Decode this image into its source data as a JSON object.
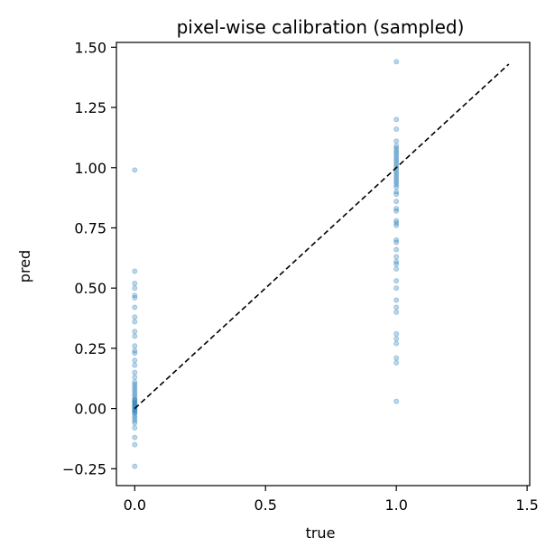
{
  "chart_data": {
    "type": "scatter",
    "title": "pixel-wise calibration (sampled)",
    "xlabel": "true",
    "ylabel": "pred",
    "xlim": [
      -0.07,
      1.51
    ],
    "ylim": [
      -0.32,
      1.52
    ],
    "xticks": [
      0.0,
      0.5,
      1.0,
      1.5
    ],
    "xtick_labels": [
      "0.0",
      "0.5",
      "1.0",
      "1.5"
    ],
    "yticks": [
      -0.25,
      0.0,
      0.25,
      0.5,
      0.75,
      1.0,
      1.25,
      1.5
    ],
    "ytick_labels": [
      "−0.25",
      "0.00",
      "0.25",
      "0.50",
      "0.75",
      "1.00",
      "1.25",
      "1.50"
    ],
    "grid": false,
    "marker_color": "#1f77b4",
    "marker_alpha": 0.3,
    "reference_line": {
      "style": "dashed",
      "color": "#000000",
      "from": [
        0.0,
        0.0
      ],
      "to": [
        1.43,
        1.43
      ]
    },
    "points": [
      {
        "x": 0,
        "y": 0.99
      },
      {
        "x": 0,
        "y": 0.57
      },
      {
        "x": 0,
        "y": 0.52
      },
      {
        "x": 0,
        "y": 0.5
      },
      {
        "x": 0,
        "y": 0.47
      },
      {
        "x": 0,
        "y": 0.46
      },
      {
        "x": 0,
        "y": 0.42
      },
      {
        "x": 0,
        "y": 0.38
      },
      {
        "x": 0,
        "y": 0.36
      },
      {
        "x": 0,
        "y": 0.32
      },
      {
        "x": 0,
        "y": 0.3
      },
      {
        "x": 0,
        "y": 0.26
      },
      {
        "x": 0,
        "y": 0.24
      },
      {
        "x": 0,
        "y": 0.23
      },
      {
        "x": 0,
        "y": 0.2
      },
      {
        "x": 0,
        "y": 0.18
      },
      {
        "x": 0,
        "y": 0.15
      },
      {
        "x": 0,
        "y": 0.13
      },
      {
        "x": 0,
        "y": 0.11
      },
      {
        "x": 0,
        "y": 0.1
      },
      {
        "x": 0,
        "y": 0.09
      },
      {
        "x": 0,
        "y": 0.08
      },
      {
        "x": 0,
        "y": 0.07
      },
      {
        "x": 0,
        "y": 0.06
      },
      {
        "x": 0,
        "y": 0.05
      },
      {
        "x": 0,
        "y": 0.04
      },
      {
        "x": 0,
        "y": 0.035
      },
      {
        "x": 0,
        "y": 0.03
      },
      {
        "x": 0,
        "y": 0.025
      },
      {
        "x": 0,
        "y": 0.02
      },
      {
        "x": 0,
        "y": 0.015
      },
      {
        "x": 0,
        "y": 0.01
      },
      {
        "x": 0,
        "y": 0.005
      },
      {
        "x": 0,
        "y": 0.0
      },
      {
        "x": 0,
        "y": -0.005
      },
      {
        "x": 0,
        "y": -0.01
      },
      {
        "x": 0,
        "y": -0.015
      },
      {
        "x": 0,
        "y": -0.02
      },
      {
        "x": 0,
        "y": -0.03
      },
      {
        "x": 0,
        "y": -0.04
      },
      {
        "x": 0,
        "y": -0.05
      },
      {
        "x": 0,
        "y": -0.06
      },
      {
        "x": 0,
        "y": -0.08
      },
      {
        "x": 0,
        "y": -0.12
      },
      {
        "x": 0,
        "y": -0.15
      },
      {
        "x": 0,
        "y": -0.24
      },
      {
        "x": 1,
        "y": 1.44
      },
      {
        "x": 1,
        "y": 1.2
      },
      {
        "x": 1,
        "y": 1.16
      },
      {
        "x": 1,
        "y": 1.11
      },
      {
        "x": 1,
        "y": 1.09
      },
      {
        "x": 1,
        "y": 1.08
      },
      {
        "x": 1,
        "y": 1.07
      },
      {
        "x": 1,
        "y": 1.06
      },
      {
        "x": 1,
        "y": 1.05
      },
      {
        "x": 1,
        "y": 1.04
      },
      {
        "x": 1,
        "y": 1.03
      },
      {
        "x": 1,
        "y": 1.02
      },
      {
        "x": 1,
        "y": 1.01
      },
      {
        "x": 1,
        "y": 1.0
      },
      {
        "x": 1,
        "y": 0.99
      },
      {
        "x": 1,
        "y": 0.98
      },
      {
        "x": 1,
        "y": 0.97
      },
      {
        "x": 1,
        "y": 0.96
      },
      {
        "x": 1,
        "y": 0.95
      },
      {
        "x": 1,
        "y": 0.94
      },
      {
        "x": 1,
        "y": 0.93
      },
      {
        "x": 1,
        "y": 0.92
      },
      {
        "x": 1,
        "y": 0.9
      },
      {
        "x": 1,
        "y": 0.89
      },
      {
        "x": 1,
        "y": 0.86
      },
      {
        "x": 1,
        "y": 0.83
      },
      {
        "x": 1,
        "y": 0.82
      },
      {
        "x": 1,
        "y": 0.78
      },
      {
        "x": 1,
        "y": 0.77
      },
      {
        "x": 1,
        "y": 0.76
      },
      {
        "x": 1,
        "y": 0.7
      },
      {
        "x": 1,
        "y": 0.69
      },
      {
        "x": 1,
        "y": 0.66
      },
      {
        "x": 1,
        "y": 0.63
      },
      {
        "x": 1,
        "y": 0.61
      },
      {
        "x": 1,
        "y": 0.6
      },
      {
        "x": 1,
        "y": 0.58
      },
      {
        "x": 1,
        "y": 0.53
      },
      {
        "x": 1,
        "y": 0.5
      },
      {
        "x": 1,
        "y": 0.45
      },
      {
        "x": 1,
        "y": 0.42
      },
      {
        "x": 1,
        "y": 0.4
      },
      {
        "x": 1,
        "y": 0.31
      },
      {
        "x": 1,
        "y": 0.29
      },
      {
        "x": 1,
        "y": 0.27
      },
      {
        "x": 1,
        "y": 0.21
      },
      {
        "x": 1,
        "y": 0.19
      },
      {
        "x": 1,
        "y": 0.03
      }
    ]
  }
}
